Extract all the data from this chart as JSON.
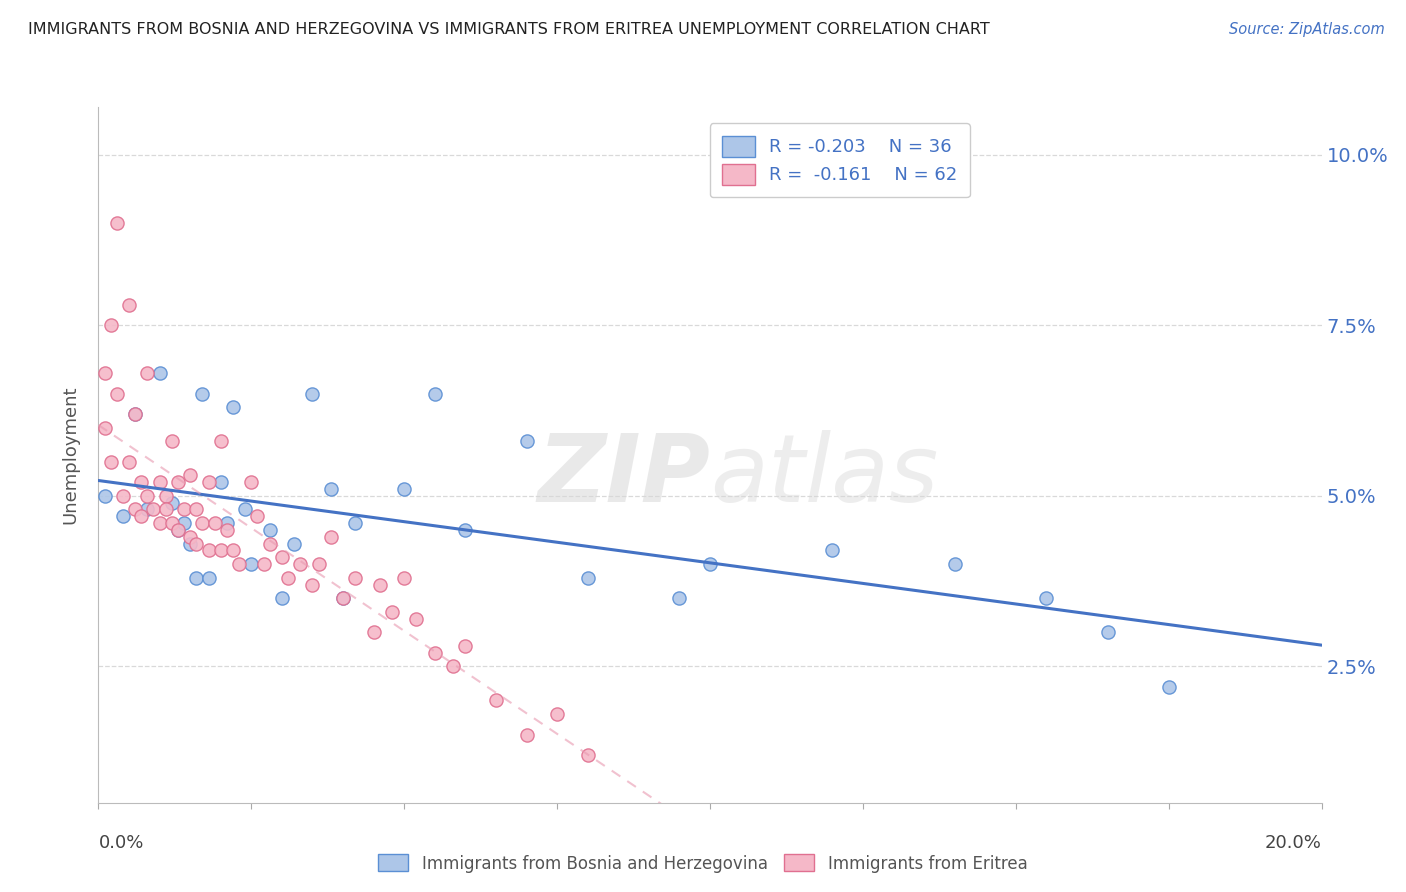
{
  "title": "IMMIGRANTS FROM BOSNIA AND HERZEGOVINA VS IMMIGRANTS FROM ERITREA UNEMPLOYMENT CORRELATION CHART",
  "source": "Source: ZipAtlas.com",
  "ylabel": "Unemployment",
  "yticks": [
    0.025,
    0.05,
    0.075,
    0.1
  ],
  "ytick_labels": [
    "2.5%",
    "5.0%",
    "7.5%",
    "10.0%"
  ],
  "xlim": [
    0.0,
    0.2
  ],
  "ylim": [
    0.005,
    0.107
  ],
  "legend_bosnia_r": "-0.203",
  "legend_bosnia_n": "36",
  "legend_eritrea_r": "-0.161",
  "legend_eritrea_n": "62",
  "color_bosnia_fill": "#adc6e8",
  "color_eritrea_fill": "#f5b8c8",
  "color_bosnia_edge": "#5b8fd4",
  "color_eritrea_edge": "#e07090",
  "color_bosnia_line": "#4472c4",
  "color_eritrea_line": "#e899b0",
  "color_text_blue": "#4472c4",
  "color_text_pink": "#c0426a",
  "bosnia_x": [
    0.001,
    0.004,
    0.006,
    0.008,
    0.01,
    0.012,
    0.013,
    0.014,
    0.015,
    0.016,
    0.017,
    0.018,
    0.02,
    0.021,
    0.022,
    0.024,
    0.025,
    0.028,
    0.03,
    0.032,
    0.035,
    0.038,
    0.04,
    0.042,
    0.05,
    0.055,
    0.06,
    0.07,
    0.08,
    0.095,
    0.1,
    0.12,
    0.14,
    0.155,
    0.165,
    0.175
  ],
  "bosnia_y": [
    0.05,
    0.047,
    0.062,
    0.048,
    0.068,
    0.049,
    0.045,
    0.046,
    0.043,
    0.038,
    0.065,
    0.038,
    0.052,
    0.046,
    0.063,
    0.048,
    0.04,
    0.045,
    0.035,
    0.043,
    0.065,
    0.051,
    0.035,
    0.046,
    0.051,
    0.065,
    0.045,
    0.058,
    0.038,
    0.035,
    0.04,
    0.042,
    0.04,
    0.035,
    0.03,
    0.022
  ],
  "eritrea_x": [
    0.001,
    0.001,
    0.002,
    0.002,
    0.003,
    0.003,
    0.004,
    0.005,
    0.005,
    0.006,
    0.006,
    0.007,
    0.007,
    0.008,
    0.008,
    0.009,
    0.01,
    0.01,
    0.011,
    0.011,
    0.012,
    0.012,
    0.013,
    0.013,
    0.014,
    0.015,
    0.015,
    0.016,
    0.016,
    0.017,
    0.018,
    0.018,
    0.019,
    0.02,
    0.02,
    0.021,
    0.022,
    0.023,
    0.025,
    0.026,
    0.027,
    0.028,
    0.03,
    0.031,
    0.033,
    0.035,
    0.036,
    0.038,
    0.04,
    0.042,
    0.045,
    0.046,
    0.048,
    0.05,
    0.052,
    0.055,
    0.058,
    0.06,
    0.065,
    0.07,
    0.075,
    0.08
  ],
  "eritrea_y": [
    0.068,
    0.06,
    0.075,
    0.055,
    0.09,
    0.065,
    0.05,
    0.078,
    0.055,
    0.048,
    0.062,
    0.052,
    0.047,
    0.068,
    0.05,
    0.048,
    0.052,
    0.046,
    0.05,
    0.048,
    0.058,
    0.046,
    0.052,
    0.045,
    0.048,
    0.044,
    0.053,
    0.048,
    0.043,
    0.046,
    0.052,
    0.042,
    0.046,
    0.058,
    0.042,
    0.045,
    0.042,
    0.04,
    0.052,
    0.047,
    0.04,
    0.043,
    0.041,
    0.038,
    0.04,
    0.037,
    0.04,
    0.044,
    0.035,
    0.038,
    0.03,
    0.037,
    0.033,
    0.038,
    0.032,
    0.027,
    0.025,
    0.028,
    0.02,
    0.015,
    0.018,
    0.012
  ],
  "watermark_zip": "ZIP",
  "watermark_atlas": "atlas",
  "background_color": "#ffffff",
  "grid_color": "#d0d0d0"
}
